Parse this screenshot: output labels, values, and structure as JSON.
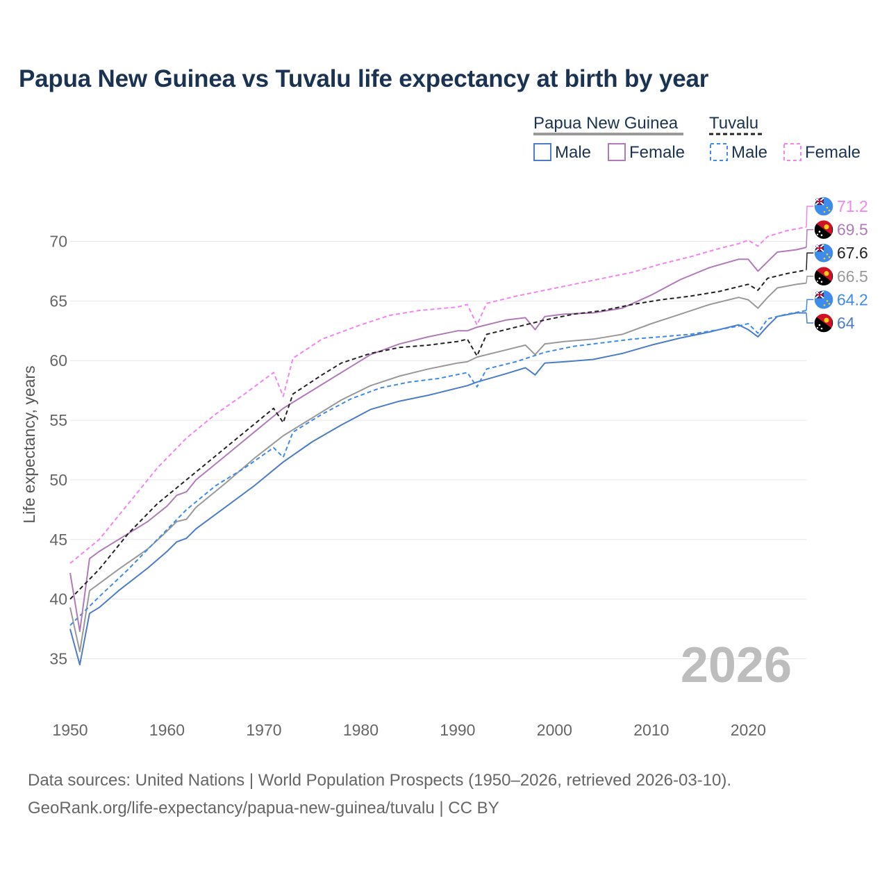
{
  "title": "Papua New Guinea vs Tuvalu life expectancy at birth by year",
  "footer": {
    "line1": "Data sources: United Nations | World Population Prospects (1950–2026, retrieved 2026-03-10).",
    "line2": "GeoRank.org/life-expectancy/papua-new-guinea/tuvalu | CC BY"
  },
  "legend": {
    "groups": [
      {
        "name": "Papua New Guinea",
        "line_style": "solid",
        "color": "#999999",
        "items": [
          {
            "label": "Male",
            "color": "#4a7cc7",
            "dashed": false
          },
          {
            "label": "Female",
            "color": "#b07ab8",
            "dashed": false
          }
        ]
      },
      {
        "name": "Tuvalu",
        "line_style": "dashed",
        "color": "#222222",
        "items": [
          {
            "label": "Male",
            "color": "#3d8bea",
            "dashed": true
          },
          {
            "label": "Female",
            "color": "#f582f0",
            "dashed": true
          }
        ]
      }
    ]
  },
  "chart_data": {
    "type": "line",
    "title": "Papua New Guinea vs Tuvalu life expectancy at birth by year",
    "xlabel": "",
    "ylabel": "Life expectancy, years",
    "xlim": [
      1950,
      2026
    ],
    "ylim": [
      32,
      73
    ],
    "xticks": [
      1950,
      1960,
      1970,
      1980,
      1990,
      2000,
      2010,
      2020
    ],
    "yticks": [
      35,
      40,
      45,
      50,
      55,
      60,
      65,
      70
    ],
    "grid": true,
    "year_watermark": "2026",
    "series": [
      {
        "id": "tuv-female",
        "name": "Tuvalu Female",
        "color": "#f582f0",
        "dashed": true,
        "width": 2,
        "end_label": "71.2",
        "flag": "tuvalu",
        "points": [
          [
            1950,
            43.0
          ],
          [
            1953,
            45.0
          ],
          [
            1956,
            48.0
          ],
          [
            1959,
            51.0
          ],
          [
            1962,
            53.5
          ],
          [
            1965,
            55.5
          ],
          [
            1968,
            57.2
          ],
          [
            1971,
            59.0
          ],
          [
            1972,
            57.0
          ],
          [
            1973,
            60.2
          ],
          [
            1976,
            61.8
          ],
          [
            1980,
            63.0
          ],
          [
            1983,
            63.8
          ],
          [
            1986,
            64.2
          ],
          [
            1990,
            64.5
          ],
          [
            1991,
            64.7
          ],
          [
            1992,
            63.0
          ],
          [
            1993,
            64.8
          ],
          [
            1996,
            65.4
          ],
          [
            1999,
            65.9
          ],
          [
            2002,
            66.4
          ],
          [
            2005,
            66.9
          ],
          [
            2008,
            67.4
          ],
          [
            2011,
            68.1
          ],
          [
            2014,
            68.7
          ],
          [
            2017,
            69.4
          ],
          [
            2019,
            69.8
          ],
          [
            2020,
            70.1
          ],
          [
            2021,
            69.6
          ],
          [
            2022,
            70.4
          ],
          [
            2024,
            70.9
          ],
          [
            2026,
            71.2
          ]
        ]
      },
      {
        "id": "png-female",
        "name": "Papua New Guinea Female",
        "color": "#b07ab8",
        "dashed": false,
        "width": 2,
        "end_label": "69.5",
        "flag": "png",
        "points": [
          [
            1950,
            42.2
          ],
          [
            1951,
            37.3
          ],
          [
            1952,
            43.4
          ],
          [
            1953,
            44.0
          ],
          [
            1955,
            45.0
          ],
          [
            1958,
            46.5
          ],
          [
            1960,
            47.8
          ],
          [
            1961,
            48.7
          ],
          [
            1962,
            49.0
          ],
          [
            1963,
            50.0
          ],
          [
            1966,
            52.0
          ],
          [
            1969,
            54.0
          ],
          [
            1972,
            56.0
          ],
          [
            1975,
            57.5
          ],
          [
            1978,
            59.0
          ],
          [
            1981,
            60.5
          ],
          [
            1984,
            61.4
          ],
          [
            1987,
            62.0
          ],
          [
            1990,
            62.5
          ],
          [
            1991,
            62.5
          ],
          [
            1992,
            62.8
          ],
          [
            1995,
            63.4
          ],
          [
            1997,
            63.6
          ],
          [
            1998,
            62.6
          ],
          [
            1999,
            63.7
          ],
          [
            2001,
            63.9
          ],
          [
            2004,
            64.0
          ],
          [
            2007,
            64.4
          ],
          [
            2010,
            65.5
          ],
          [
            2013,
            66.8
          ],
          [
            2016,
            67.8
          ],
          [
            2019,
            68.5
          ],
          [
            2020,
            68.5
          ],
          [
            2021,
            67.5
          ],
          [
            2022,
            68.3
          ],
          [
            2023,
            69.1
          ],
          [
            2025,
            69.3
          ],
          [
            2026,
            69.5
          ]
        ]
      },
      {
        "id": "tuv-both",
        "name": "Tuvalu",
        "color": "#222222",
        "dashed": true,
        "width": 2,
        "end_label": "67.6",
        "flag": "tuvalu",
        "points": [
          [
            1950,
            40.0
          ],
          [
            1953,
            42.5
          ],
          [
            1956,
            45.5
          ],
          [
            1959,
            48.0
          ],
          [
            1962,
            50.0
          ],
          [
            1965,
            52.0
          ],
          [
            1968,
            54.0
          ],
          [
            1971,
            56.0
          ],
          [
            1972,
            54.8
          ],
          [
            1973,
            57.2
          ],
          [
            1976,
            58.8
          ],
          [
            1978,
            59.8
          ],
          [
            1981,
            60.6
          ],
          [
            1984,
            61.1
          ],
          [
            1987,
            61.3
          ],
          [
            1990,
            61.6
          ],
          [
            1991,
            61.8
          ],
          [
            1992,
            60.4
          ],
          [
            1993,
            62.2
          ],
          [
            1996,
            62.8
          ],
          [
            1999,
            63.4
          ],
          [
            2002,
            63.9
          ],
          [
            2005,
            64.2
          ],
          [
            2008,
            64.7
          ],
          [
            2011,
            65.1
          ],
          [
            2014,
            65.4
          ],
          [
            2017,
            65.8
          ],
          [
            2019,
            66.2
          ],
          [
            2020,
            66.4
          ],
          [
            2021,
            65.9
          ],
          [
            2022,
            66.9
          ],
          [
            2024,
            67.3
          ],
          [
            2026,
            67.6
          ]
        ]
      },
      {
        "id": "png-both",
        "name": "Papua New Guinea",
        "color": "#999999",
        "dashed": false,
        "width": 2,
        "end_label": "66.5",
        "flag": "png",
        "points": [
          [
            1950,
            39.3
          ],
          [
            1951,
            35.6
          ],
          [
            1952,
            40.7
          ],
          [
            1953,
            41.3
          ],
          [
            1955,
            42.5
          ],
          [
            1958,
            44.2
          ],
          [
            1960,
            45.7
          ],
          [
            1961,
            46.5
          ],
          [
            1962,
            46.7
          ],
          [
            1963,
            47.7
          ],
          [
            1966,
            49.7
          ],
          [
            1969,
            51.8
          ],
          [
            1972,
            53.7
          ],
          [
            1975,
            55.2
          ],
          [
            1978,
            56.7
          ],
          [
            1981,
            57.9
          ],
          [
            1984,
            58.7
          ],
          [
            1987,
            59.3
          ],
          [
            1990,
            59.8
          ],
          [
            1991,
            59.9
          ],
          [
            1992,
            60.3
          ],
          [
            1995,
            60.9
          ],
          [
            1997,
            61.3
          ],
          [
            1998,
            60.5
          ],
          [
            1999,
            61.4
          ],
          [
            2001,
            61.6
          ],
          [
            2004,
            61.8
          ],
          [
            2007,
            62.2
          ],
          [
            2010,
            63.1
          ],
          [
            2013,
            63.9
          ],
          [
            2016,
            64.7
          ],
          [
            2019,
            65.3
          ],
          [
            2020,
            65.1
          ],
          [
            2021,
            64.4
          ],
          [
            2022,
            65.3
          ],
          [
            2023,
            66.1
          ],
          [
            2025,
            66.4
          ],
          [
            2026,
            66.5
          ]
        ]
      },
      {
        "id": "tuv-male",
        "name": "Tuvalu Male",
        "color": "#3d8bea",
        "dashed": true,
        "width": 2,
        "end_label": "64.2",
        "flag": "tuvalu",
        "points": [
          [
            1950,
            37.8
          ],
          [
            1953,
            40.2
          ],
          [
            1956,
            42.5
          ],
          [
            1959,
            45.0
          ],
          [
            1962,
            47.5
          ],
          [
            1965,
            49.5
          ],
          [
            1968,
            51.0
          ],
          [
            1971,
            52.7
          ],
          [
            1972,
            51.9
          ],
          [
            1973,
            54.0
          ],
          [
            1976,
            55.5
          ],
          [
            1979,
            56.8
          ],
          [
            1982,
            57.7
          ],
          [
            1985,
            58.2
          ],
          [
            1988,
            58.5
          ],
          [
            1991,
            59.0
          ],
          [
            1992,
            57.8
          ],
          [
            1993,
            59.3
          ],
          [
            1996,
            59.9
          ],
          [
            1999,
            60.7
          ],
          [
            2002,
            61.2
          ],
          [
            2005,
            61.5
          ],
          [
            2008,
            61.8
          ],
          [
            2011,
            62.0
          ],
          [
            2014,
            62.2
          ],
          [
            2017,
            62.6
          ],
          [
            2019,
            62.9
          ],
          [
            2020,
            63.1
          ],
          [
            2021,
            62.3
          ],
          [
            2022,
            63.5
          ],
          [
            2024,
            63.9
          ],
          [
            2026,
            64.2
          ]
        ]
      },
      {
        "id": "png-male",
        "name": "Papua New Guinea Male",
        "color": "#4a7cc7",
        "dashed": false,
        "width": 2,
        "end_label": "64",
        "flag": "png",
        "points": [
          [
            1950,
            37.5
          ],
          [
            1951,
            34.5
          ],
          [
            1952,
            38.8
          ],
          [
            1953,
            39.3
          ],
          [
            1955,
            40.7
          ],
          [
            1958,
            42.6
          ],
          [
            1960,
            44.0
          ],
          [
            1961,
            44.8
          ],
          [
            1962,
            45.1
          ],
          [
            1963,
            45.9
          ],
          [
            1966,
            47.7
          ],
          [
            1969,
            49.5
          ],
          [
            1972,
            51.5
          ],
          [
            1975,
            53.2
          ],
          [
            1978,
            54.6
          ],
          [
            1981,
            55.9
          ],
          [
            1984,
            56.6
          ],
          [
            1987,
            57.1
          ],
          [
            1990,
            57.7
          ],
          [
            1991,
            57.9
          ],
          [
            1992,
            58.2
          ],
          [
            1995,
            58.9
          ],
          [
            1997,
            59.4
          ],
          [
            1998,
            58.8
          ],
          [
            1999,
            59.8
          ],
          [
            2001,
            59.9
          ],
          [
            2004,
            60.1
          ],
          [
            2007,
            60.6
          ],
          [
            2010,
            61.3
          ],
          [
            2013,
            61.9
          ],
          [
            2016,
            62.4
          ],
          [
            2019,
            63.0
          ],
          [
            2020,
            62.6
          ],
          [
            2021,
            62.0
          ],
          [
            2022,
            62.9
          ],
          [
            2023,
            63.7
          ],
          [
            2025,
            64.0
          ],
          [
            2026,
            64.0
          ]
        ]
      }
    ]
  }
}
